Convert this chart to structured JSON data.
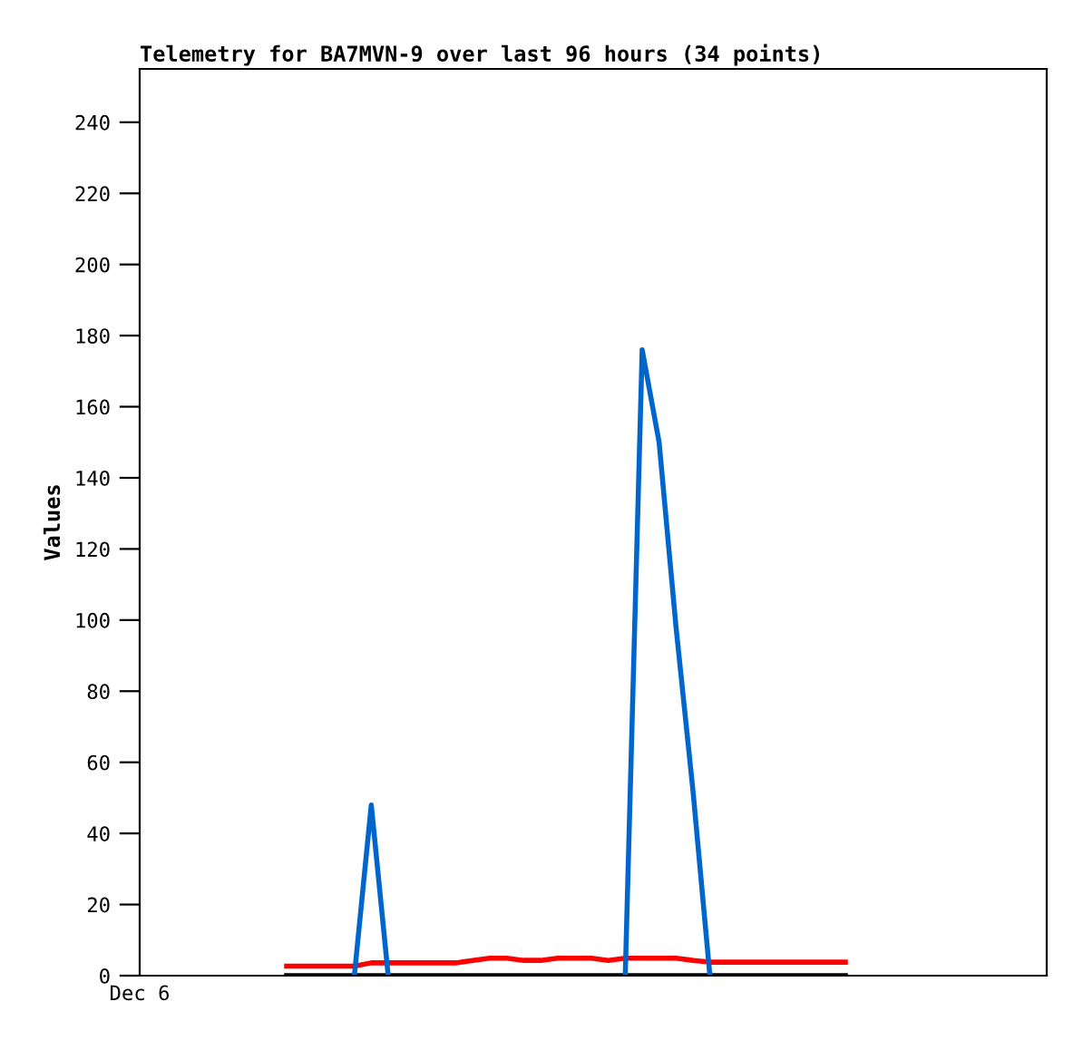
{
  "chart_data": {
    "type": "line",
    "title": "Telemetry for BA7MVN-9 over last 96 hours (34 points)",
    "ylabel": "Values",
    "categories": [
      null,
      null,
      null,
      null,
      null,
      null,
      null,
      null,
      null,
      null,
      null,
      null,
      null,
      null,
      null,
      null,
      null,
      null,
      null,
      null,
      null,
      null,
      null,
      null,
      null,
      null,
      null,
      null,
      null,
      null,
      null,
      null,
      null,
      null
    ],
    "annotations": [
      "Dec 6"
    ],
    "ylim": [
      0,
      255
    ],
    "yticks": [
      0,
      20,
      40,
      60,
      80,
      100,
      120,
      140,
      160,
      180,
      200,
      220,
      240
    ],
    "series": [
      {
        "color": "#ff0000",
        "values": [
          2.7,
          2.7,
          2.7,
          2.7,
          2.7,
          3.6,
          3.6,
          3.6,
          3.6,
          3.6,
          3.6,
          4.3,
          4.9,
          4.9,
          4.3,
          4.3,
          4.9,
          4.9,
          4.9,
          4.3,
          4.9,
          4.9,
          4.9,
          4.9,
          4.3,
          3.8,
          3.8,
          3.8,
          3.8,
          3.8,
          3.8,
          3.8,
          3.8,
          3.8
        ]
      },
      {
        "color": "#0066cc",
        "values": [
          null,
          null,
          null,
          null,
          0,
          48,
          0,
          null,
          null,
          null,
          null,
          null,
          null,
          null,
          null,
          null,
          null,
          null,
          null,
          null,
          0,
          176,
          150,
          98,
          52,
          0,
          null,
          null,
          null,
          null,
          null,
          null,
          null,
          null
        ]
      },
      {
        "color": "#000000",
        "values": [
          0,
          0,
          0,
          0,
          0,
          0,
          0,
          0,
          0,
          0,
          0,
          0,
          0,
          0,
          0,
          0,
          0,
          0,
          0,
          0,
          0,
          0,
          0,
          0,
          0,
          0,
          0,
          0,
          0,
          0,
          0,
          0,
          0,
          0
        ]
      }
    ]
  }
}
